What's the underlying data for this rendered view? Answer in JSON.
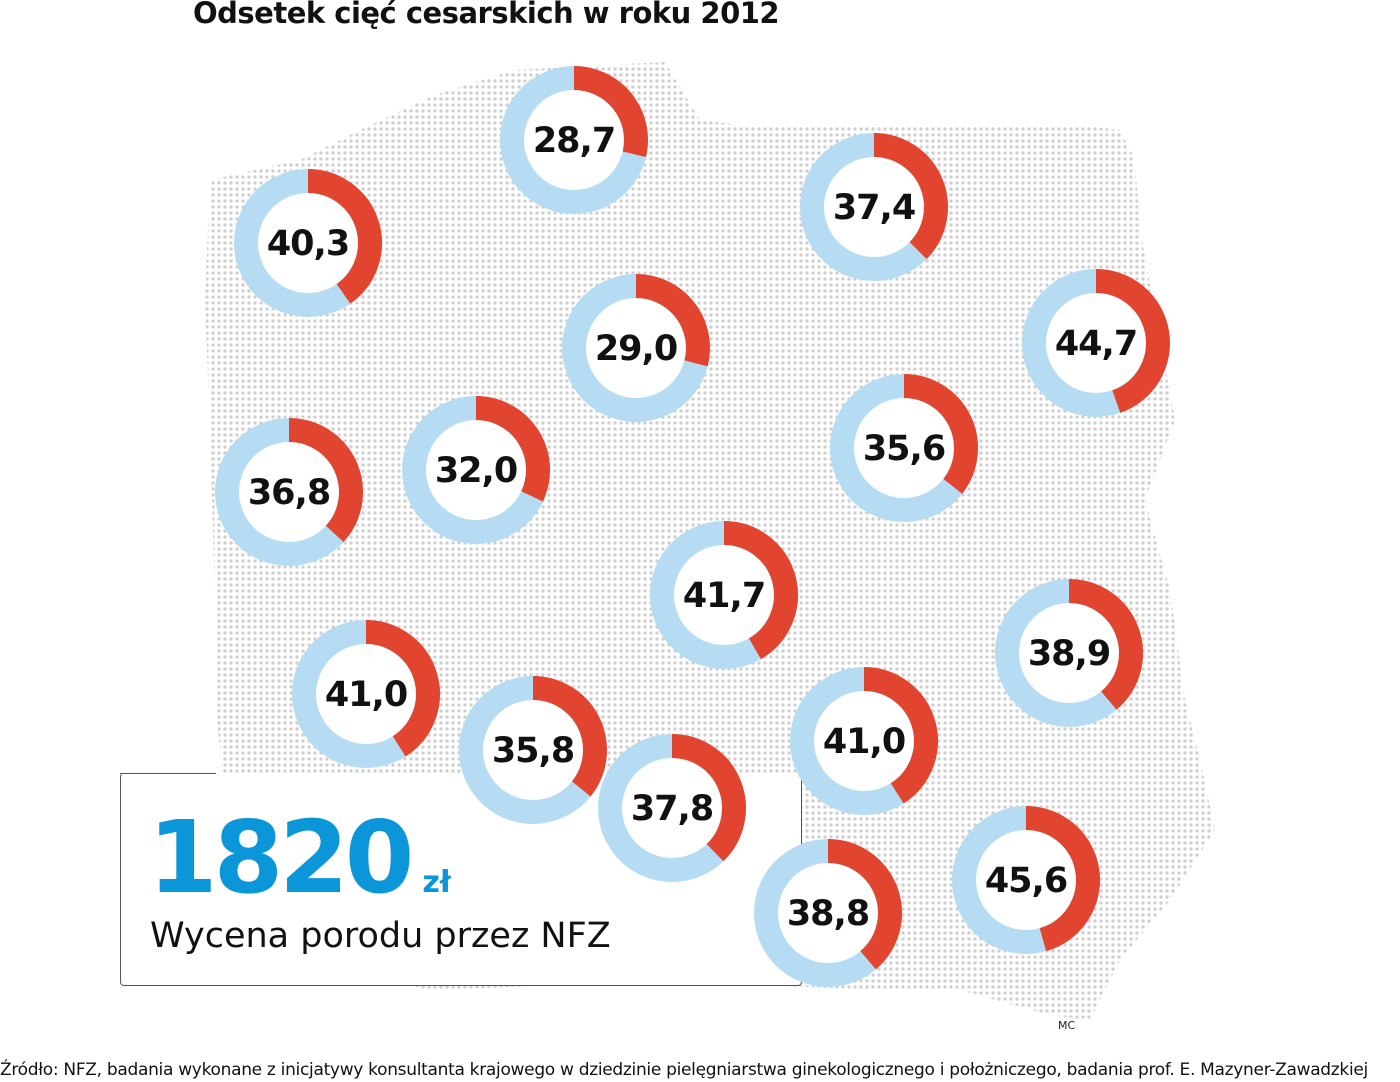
{
  "title": "Odsetek cięć cesarskich w roku 2012",
  "colors": {
    "share": "#e2452f",
    "rest": "#b5dcf3",
    "accent": "#0a96d8",
    "map_dots": "#cfcfcf"
  },
  "chart_data": {
    "type": "donut-map",
    "title": "Odsetek cięć cesarskich w roku 2012",
    "unit": "%",
    "values": [
      28.7,
      40.3,
      37.4,
      29.0,
      44.7,
      36.8,
      32.0,
      35.6,
      41.7,
      38.9,
      41.0,
      35.8,
      37.8,
      41.0,
      38.8,
      45.6
    ],
    "labels": [
      "28,7",
      "40,3",
      "37,4",
      "29,0",
      "44,7",
      "36,8",
      "32,0",
      "35,6",
      "41,7",
      "38,9",
      "41,0",
      "35,8",
      "37,8",
      "41,0",
      "38,8",
      "45,6"
    ]
  },
  "info_box": {
    "value": "1820",
    "unit": "zł",
    "caption": "Wycena porodu przez NFZ"
  },
  "author": "MC",
  "source": "Źródło: NFZ, badania wykonane z inicjatywy konsultanta krajowego w dziedzinie pielęgniarstwa ginekologicznego i położniczego, badania prof. E. Mazyner-Zawadzkiej"
}
